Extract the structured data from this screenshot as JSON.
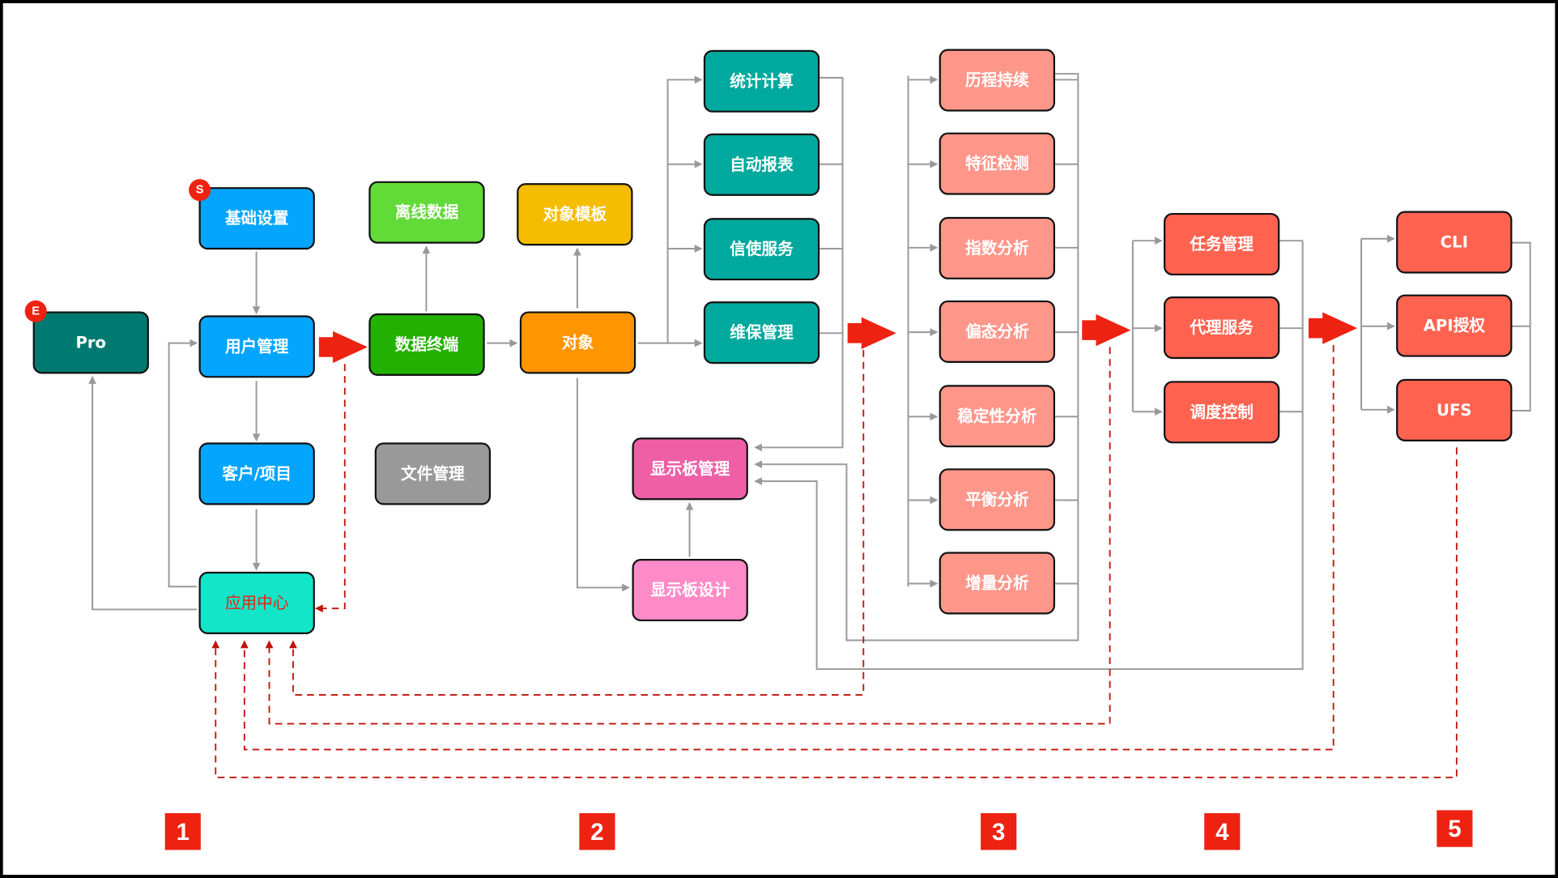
{
  "colors": {
    "pro": "#007A70",
    "blue": "#03A5FE",
    "app_center": "#13E5C9",
    "app_center_text": "#E8200E",
    "offline_green": "#62DA38",
    "terminal_green": "#22B003",
    "gray": "#999999",
    "template_yellow": "#F6BC00",
    "object_orange": "#FF9500",
    "dashboard_mgmt": "#EE5FA6",
    "dashboard_design": "#FF8AC8",
    "teal": "#00A99D",
    "salmon": "#FF968A",
    "red_orange": "#FF6350",
    "accent_red": "#EE2211",
    "connector": "#999999",
    "dashed": "#C0140B"
  },
  "badges": {
    "s": "S",
    "e": "E"
  },
  "nodes": {
    "pro": "Pro",
    "basic_settings": "基础设置",
    "user_mgmt": "用户管理",
    "client_project": "客户/项目",
    "app_center": "应用中心",
    "offline_data": "离线数据",
    "data_terminal": "数据终端",
    "file_mgmt": "文件管理",
    "object_template": "对象模板",
    "object": "对象",
    "dashboard_mgmt": "显示板管理",
    "dashboard_design": "显示板设计",
    "stats_calc": "统计计算",
    "auto_report": "自动报表",
    "messenger": "信使服务",
    "maintenance": "维保管理",
    "history": "历程持续",
    "feature_detect": "特征检测",
    "index_analysis": "指数分析",
    "skew_analysis": "偏态分析",
    "stability_analysis": "稳定性分析",
    "balance_analysis": "平衡分析",
    "increment_analysis": "增量分析",
    "task_mgmt": "任务管理",
    "proxy_service": "代理服务",
    "schedule_control": "调度控制",
    "cli": "CLI",
    "api_auth": "API授权",
    "ufs": "UFS"
  },
  "steps": [
    "1",
    "2",
    "3",
    "4",
    "5"
  ]
}
